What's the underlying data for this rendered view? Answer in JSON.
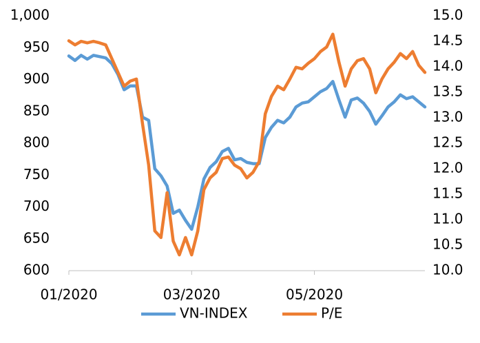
{
  "chart_data": {
    "type": "line",
    "categories": [
      "01/2020",
      null,
      null,
      null,
      null,
      null,
      null,
      null,
      null,
      null,
      null,
      null,
      null,
      null,
      null,
      null,
      null,
      null,
      null,
      null,
      "03/2020",
      null,
      null,
      null,
      null,
      null,
      null,
      null,
      null,
      null,
      null,
      null,
      null,
      null,
      null,
      null,
      null,
      null,
      null,
      null,
      "05/2020",
      null,
      null,
      null,
      null,
      null,
      null,
      null,
      null,
      null,
      null,
      null,
      null,
      null,
      null,
      null,
      null,
      null,
      null
    ],
    "series": [
      {
        "name": "VN-INDEX",
        "color": "#5b9bd5",
        "values": [
          937,
          930,
          938,
          932,
          938,
          936,
          934,
          925,
          908,
          884,
          890,
          890,
          841,
          836,
          760,
          749,
          733,
          690,
          695,
          679,
          665,
          700,
          744,
          762,
          771,
          787,
          792,
          774,
          776,
          770,
          768,
          768,
          809,
          825,
          836,
          832,
          841,
          857,
          863,
          865,
          873,
          881,
          886,
          897,
          868,
          841,
          868,
          871,
          863,
          850,
          830,
          843,
          857,
          865,
          876,
          870,
          873,
          865,
          857
        ]
      },
      {
        "name": "P/E",
        "color": "#ed7d31",
        "axis": "y2",
        "values": [
          14.51,
          14.43,
          14.5,
          14.47,
          14.5,
          14.47,
          14.43,
          14.16,
          13.89,
          13.62,
          13.72,
          13.76,
          12.88,
          12.07,
          10.78,
          10.65,
          11.53,
          10.58,
          10.31,
          10.65,
          10.31,
          10.78,
          11.59,
          11.82,
          11.93,
          12.2,
          12.23,
          12.07,
          12.0,
          11.82,
          11.93,
          12.14,
          13.08,
          13.42,
          13.62,
          13.55,
          13.76,
          13.99,
          13.96,
          14.07,
          14.16,
          14.3,
          14.39,
          14.64,
          14.09,
          13.62,
          13.96,
          14.12,
          14.16,
          13.96,
          13.49,
          13.76,
          13.96,
          14.09,
          14.26,
          14.16,
          14.3,
          14.03,
          13.89
        ]
      }
    ],
    "ylim": [
      600,
      1000
    ],
    "yticks": [
      600,
      650,
      700,
      750,
      800,
      850,
      900,
      950,
      {
        "value": 1000,
        "label": "1,000"
      }
    ],
    "y2lim": [
      10,
      15
    ],
    "y2ticks": [
      {
        "value": 10,
        "label": "10.0"
      },
      10.5,
      {
        "value": 11,
        "label": "11.0"
      },
      11.5,
      {
        "value": 12,
        "label": "12.0"
      },
      12.5,
      {
        "value": 13,
        "label": "13.0"
      },
      13.5,
      {
        "value": 14,
        "label": "14.0"
      },
      14.5,
      {
        "value": 15,
        "label": "15.0"
      }
    ],
    "grid": false,
    "legend": "bottom"
  }
}
